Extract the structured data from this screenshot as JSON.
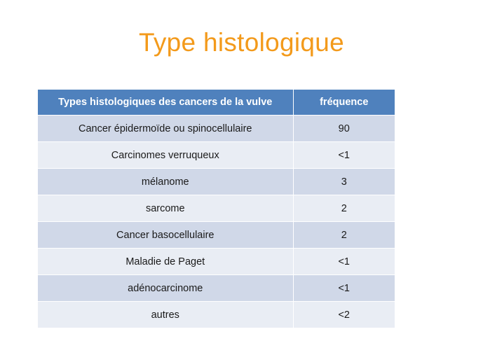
{
  "slide": {
    "title": "Type histologique"
  },
  "table": {
    "headers": [
      "Types histologiques des cancers de la vulve",
      "fréquence"
    ],
    "rows": [
      {
        "type": "Cancer épidermoïde ou spinocellulaire",
        "frequency": "90"
      },
      {
        "type": "Carcinomes verruqueux",
        "frequency": "<1"
      },
      {
        "type": "mélanome",
        "frequency": "3"
      },
      {
        "type": "sarcome",
        "frequency": "2"
      },
      {
        "type": "Cancer basocellulaire",
        "frequency": "2"
      },
      {
        "type": "Maladie de Paget",
        "frequency": "<1"
      },
      {
        "type": "adénocarcinome",
        "frequency": "<1"
      },
      {
        "type": "autres",
        "frequency": "<2"
      }
    ]
  },
  "colors": {
    "title": "#f39a1b",
    "header_bg": "#4f81bd",
    "row_odd_bg": "#d0d8e8",
    "row_even_bg": "#e9edf4"
  }
}
